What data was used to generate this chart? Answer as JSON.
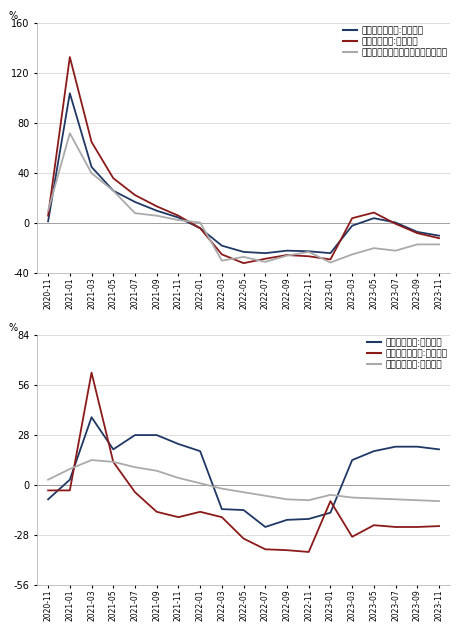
{
  "chart1": {
    "ylabel": "%",
    "ylim": [
      -40,
      160
    ],
    "yticks": [
      -40,
      0,
      40,
      80,
      120,
      160
    ],
    "legend": [
      "商品房销售面积:累计同比",
      "商品房销售额:累计同比",
      "国有土地使用权出让收入：累计同比"
    ],
    "colors": [
      "#1f3864",
      "#8b1a1a",
      "#aaaaaa"
    ],
    "x_labels": [
      "2020-11",
      "2021-01",
      "2021-03",
      "2021-05",
      "2021-07",
      "2021-09",
      "2021-11",
      "2022-01",
      "2022-03",
      "2022-05",
      "2022-07",
      "2022-09",
      "2022-11",
      "2023-01",
      "2023-03",
      "2023-05",
      "2023-07",
      "2023-09",
      "2023-11"
    ],
    "series1": [
      1.5,
      104.0,
      45.0,
      26.0,
      17.0,
      10.0,
      4.5,
      -4.0,
      -18.0,
      -23.0,
      -24.0,
      -22.0,
      -22.5,
      -24.0,
      -2.0,
      4.0,
      0.5,
      -7.0,
      -10.0
    ],
    "series2": [
      6.0,
      133.0,
      65.0,
      36.0,
      22.5,
      13.5,
      6.0,
      -4.0,
      -25.0,
      -32.0,
      -28.5,
      -25.5,
      -26.5,
      -29.0,
      4.0,
      8.5,
      -0.5,
      -8.0,
      -12.0
    ],
    "series3": [
      10.0,
      72.0,
      40.0,
      26.0,
      8.0,
      6.0,
      2.5,
      0.5,
      -30.0,
      -27.0,
      -31.0,
      -26.0,
      -23.0,
      -31.5,
      -25.0,
      -20.0,
      -22.0,
      -17.0,
      -17.0
    ]
  },
  "chart2": {
    "ylabel": "%",
    "ylim": [
      -56,
      84
    ],
    "yticks": [
      -56,
      -28,
      0,
      28,
      56,
      84
    ],
    "legend": [
      "房屋竣工面积:累计同比",
      "房屋新开工面积:累计同比",
      "房屋施工面积:累计同比"
    ],
    "colors": [
      "#1f3864",
      "#8b1a1a",
      "#aaaaaa"
    ],
    "x_labels": [
      "2020-11",
      "2021-01",
      "2021-03",
      "2021-05",
      "2021-07",
      "2021-09",
      "2021-11",
      "2022-01",
      "2022-03",
      "2022-05",
      "2022-07",
      "2022-09",
      "2022-11",
      "2023-01",
      "2023-03",
      "2023-05",
      "2023-07",
      "2023-09",
      "2023-11"
    ],
    "series1": [
      -8.0,
      3.0,
      38.0,
      20.0,
      28.0,
      28.0,
      23.0,
      19.0,
      -13.5,
      -14.0,
      -23.5,
      -19.5,
      -19.0,
      -15.5,
      14.0,
      19.0,
      21.5,
      21.5,
      20.0
    ],
    "series2": [
      -3.0,
      -3.0,
      63.0,
      13.0,
      -4.0,
      -15.0,
      -18.0,
      -15.0,
      -18.0,
      -30.0,
      -36.0,
      -36.5,
      -37.5,
      -9.0,
      -29.0,
      -22.5,
      -23.5,
      -23.5,
      -23.0
    ],
    "series3": [
      3.0,
      9.0,
      14.0,
      13.0,
      10.0,
      8.0,
      4.0,
      1.0,
      -2.0,
      -4.0,
      -6.0,
      -8.0,
      -8.5,
      -5.5,
      -7.0,
      -7.5,
      -8.0,
      -8.5,
      -9.0
    ]
  }
}
